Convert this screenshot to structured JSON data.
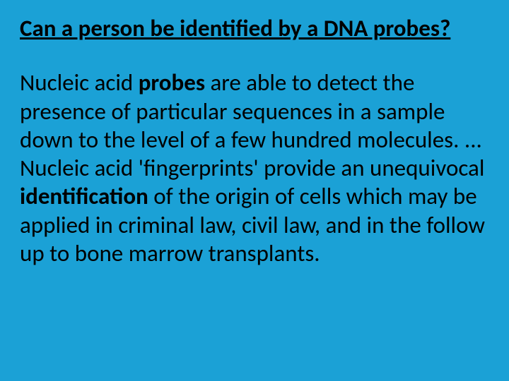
{
  "slide": {
    "background_color": "#1ba1d6",
    "text_color": "#000000",
    "title": {
      "text": "Can a person be identified by a DNA probes?",
      "fontsize": 33,
      "underline": true,
      "bold": true
    },
    "body": {
      "fontsize": 33,
      "segments": [
        {
          "text": "Nucleic acid ",
          "bold": false
        },
        {
          "text": "probes",
          "bold": true
        },
        {
          "text": " are able to detect the presence of particular sequences in a sample down to the level of a few hundred molecules. ... Nucleic acid 'fingerprints' provide an unequivocal ",
          "bold": false
        },
        {
          "text": "identification",
          "bold": true
        },
        {
          "text": " of the origin of cells which may be applied in criminal law, civil law, and in the follow up to bone marrow transplants.",
          "bold": false
        }
      ]
    }
  }
}
